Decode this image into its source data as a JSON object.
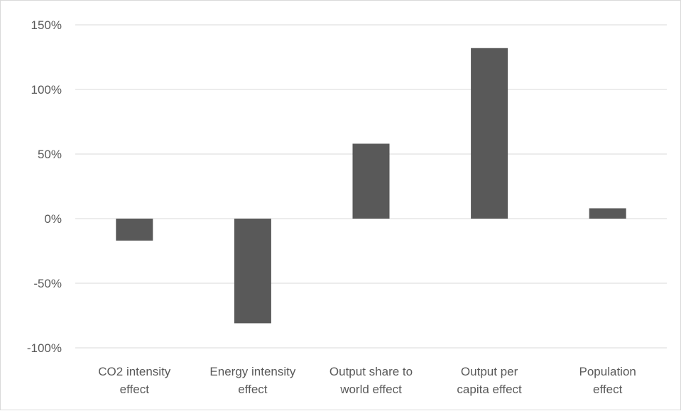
{
  "chart_data": {
    "type": "bar",
    "title": "",
    "xlabel": "",
    "ylabel": "",
    "categories": [
      [
        "CO2 intensity",
        "effect"
      ],
      [
        "Energy intensity",
        "effect"
      ],
      [
        "Output share to",
        "world effect"
      ],
      [
        "Output per",
        "capita effect"
      ],
      [
        "Population",
        "effect"
      ]
    ],
    "values": [
      -17,
      -81,
      58,
      132,
      8
    ],
    "ylim": [
      -100,
      150
    ],
    "yticks": [
      150,
      100,
      50,
      0,
      -50,
      -100
    ],
    "ytick_labels": [
      "150%",
      "100%",
      "50%",
      "0%",
      "-50%",
      "-100%"
    ],
    "grid": true,
    "legend": "none",
    "bar_color": "#595959",
    "grid_color": "#d9d9d9"
  }
}
